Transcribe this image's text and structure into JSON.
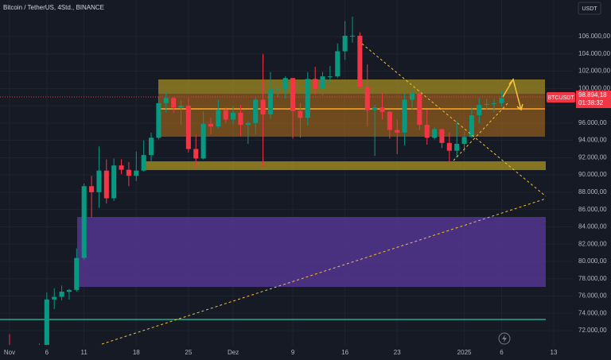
{
  "chart_data": {
    "type": "candlestick",
    "title": "Bitcoin / TetherUS, 4Std., BINANCE",
    "currency": "USDT",
    "symbol": "BTCUSDT",
    "last_price_label": "98.894,18",
    "countdown": "01:38:32",
    "up_color": "#089981",
    "down_color": "#f23645",
    "grid": true,
    "x": [
      0,
      1,
      2,
      3,
      4,
      5,
      6,
      7,
      8,
      9,
      10,
      11,
      12,
      13,
      14,
      15,
      16,
      17,
      18,
      19,
      20,
      21,
      22,
      23,
      24,
      25,
      26,
      27,
      28,
      29,
      30,
      31,
      32,
      33,
      34,
      35,
      36,
      37,
      38,
      39,
      40,
      41,
      42,
      43,
      44,
      45,
      46,
      47,
      48,
      49,
      50,
      51,
      52,
      53,
      54,
      55,
      56,
      57,
      58,
      59,
      60,
      61,
      62,
      63,
      64,
      65,
      66
    ],
    "open": [
      70300,
      69500,
      69300,
      68700,
      67800,
      69400,
      75600,
      75900,
      76500,
      76700,
      80400,
      88700,
      88000,
      90500,
      87300,
      91100,
      90600,
      89900,
      90500,
      92300,
      94300,
      98300,
      98900,
      97800,
      98000,
      93000,
      91900,
      95900,
      95600,
      97500,
      96400,
      97200,
      95800,
      96000,
      98700,
      97000,
      99900,
      99900,
      101200,
      97400,
      96600,
      101100,
      100000,
      101400,
      101400,
      104300,
      106100,
      106100,
      100200,
      97500,
      97800,
      97300,
      95200,
      94900,
      98700,
      99400,
      95800,
      94300,
      95300,
      93700,
      92800,
      93600,
      94400,
      96900,
      98100,
      98200,
      98300
    ],
    "high": [
      71600,
      70000,
      69400,
      69000,
      70500,
      76400,
      76900,
      77200,
      76800,
      81500,
      89000,
      89900,
      93300,
      91800,
      91900,
      91800,
      91500,
      92700,
      94000,
      94900,
      99000,
      99600,
      99000,
      98600,
      98900,
      94700,
      97400,
      96600,
      98700,
      97800,
      98000,
      98100,
      96200,
      99000,
      104000,
      101900,
      100500,
      101400,
      101200,
      98300,
      101900,
      102500,
      101900,
      102600,
      105200,
      107800,
      108300,
      106500,
      102800,
      98100,
      99500,
      97400,
      96400,
      99400,
      99900,
      99900,
      97500,
      95500,
      95300,
      94900,
      96200,
      95000,
      97800,
      98900,
      98800,
      98800,
      99800
    ],
    "low": [
      69000,
      69000,
      67500,
      66800,
      67500,
      69300,
      74500,
      75500,
      75600,
      76500,
      80200,
      85100,
      86200,
      86700,
      87000,
      90100,
      88700,
      89300,
      90400,
      91600,
      94100,
      97200,
      97200,
      95800,
      92600,
      90800,
      91800,
      94700,
      95400,
      96000,
      95800,
      94500,
      93600,
      94700,
      91000,
      96500,
      99000,
      98800,
      94200,
      94300,
      95700,
      99300,
      99200,
      100600,
      101200,
      103300,
      105300,
      100000,
      95600,
      92200,
      96400,
      94200,
      92400,
      93400,
      97600,
      95200,
      93500,
      94100,
      93100,
      91400,
      92000,
      92700,
      94300,
      96000,
      97500,
      97300,
      97900
    ],
    "close": [
      69500,
      69300,
      68700,
      67800,
      69400,
      75600,
      75900,
      76500,
      76700,
      80400,
      88700,
      88000,
      90500,
      87300,
      91100,
      90600,
      89900,
      90500,
      92300,
      94300,
      98300,
      98900,
      97800,
      98000,
      93000,
      91900,
      95900,
      95600,
      97500,
      96400,
      97200,
      95800,
      96000,
      98700,
      97000,
      99900,
      99900,
      101200,
      97400,
      96600,
      101100,
      100000,
      101400,
      101400,
      104300,
      106100,
      106100,
      100200,
      97500,
      97800,
      97300,
      95200,
      94900,
      98700,
      99400,
      95800,
      94300,
      95300,
      93700,
      92800,
      93600,
      94400,
      96900,
      98100,
      98200,
      98300,
      98894.18
    ],
    "xlim": [
      -1.28,
      75.56
    ],
    "xticks": [
      {
        "value": 0,
        "label": "Nov"
      },
      {
        "value": 5,
        "label": "6"
      },
      {
        "value": 10,
        "label": "11"
      },
      {
        "value": 17,
        "label": "18"
      },
      {
        "value": 24,
        "label": "25"
      },
      {
        "value": 30,
        "label": "Dez"
      },
      {
        "value": 38,
        "label": "9"
      },
      {
        "value": 45,
        "label": "16"
      },
      {
        "value": 52,
        "label": "23"
      },
      {
        "value": 61,
        "label": "2025"
      },
      {
        "value": 66,
        "label": "6"
      },
      {
        "value": 73,
        "label": "13"
      }
    ],
    "ylim": [
      68600,
      110230
    ],
    "yticks": [
      {
        "value": 106000,
        "label": "106.000,00"
      },
      {
        "value": 104000,
        "label": "104.000,00"
      },
      {
        "value": 102000,
        "label": "102.000,00"
      },
      {
        "value": 100000,
        "label": "100.000,00"
      },
      {
        "value": 98000,
        "label": "98.000,00"
      },
      {
        "value": 96000,
        "label": "96.000,00"
      },
      {
        "value": 94000,
        "label": "94.000,00"
      },
      {
        "value": 92000,
        "label": "92.000,00"
      },
      {
        "value": 90000,
        "label": "90.000,00"
      },
      {
        "value": 88000,
        "label": "88.000,00"
      },
      {
        "value": 86000,
        "label": "86.000,00"
      },
      {
        "value": 84000,
        "label": "84.000,00"
      },
      {
        "value": 82000,
        "label": "82.000,00"
      },
      {
        "value": 80000,
        "label": "80.000,00"
      },
      {
        "value": 78000,
        "label": "78.000,00"
      },
      {
        "value": 76000,
        "label": "76.000,00"
      },
      {
        "value": 74000,
        "label": "74.000,00"
      },
      {
        "value": 72000,
        "label": "72.000,00"
      }
    ]
  }
}
